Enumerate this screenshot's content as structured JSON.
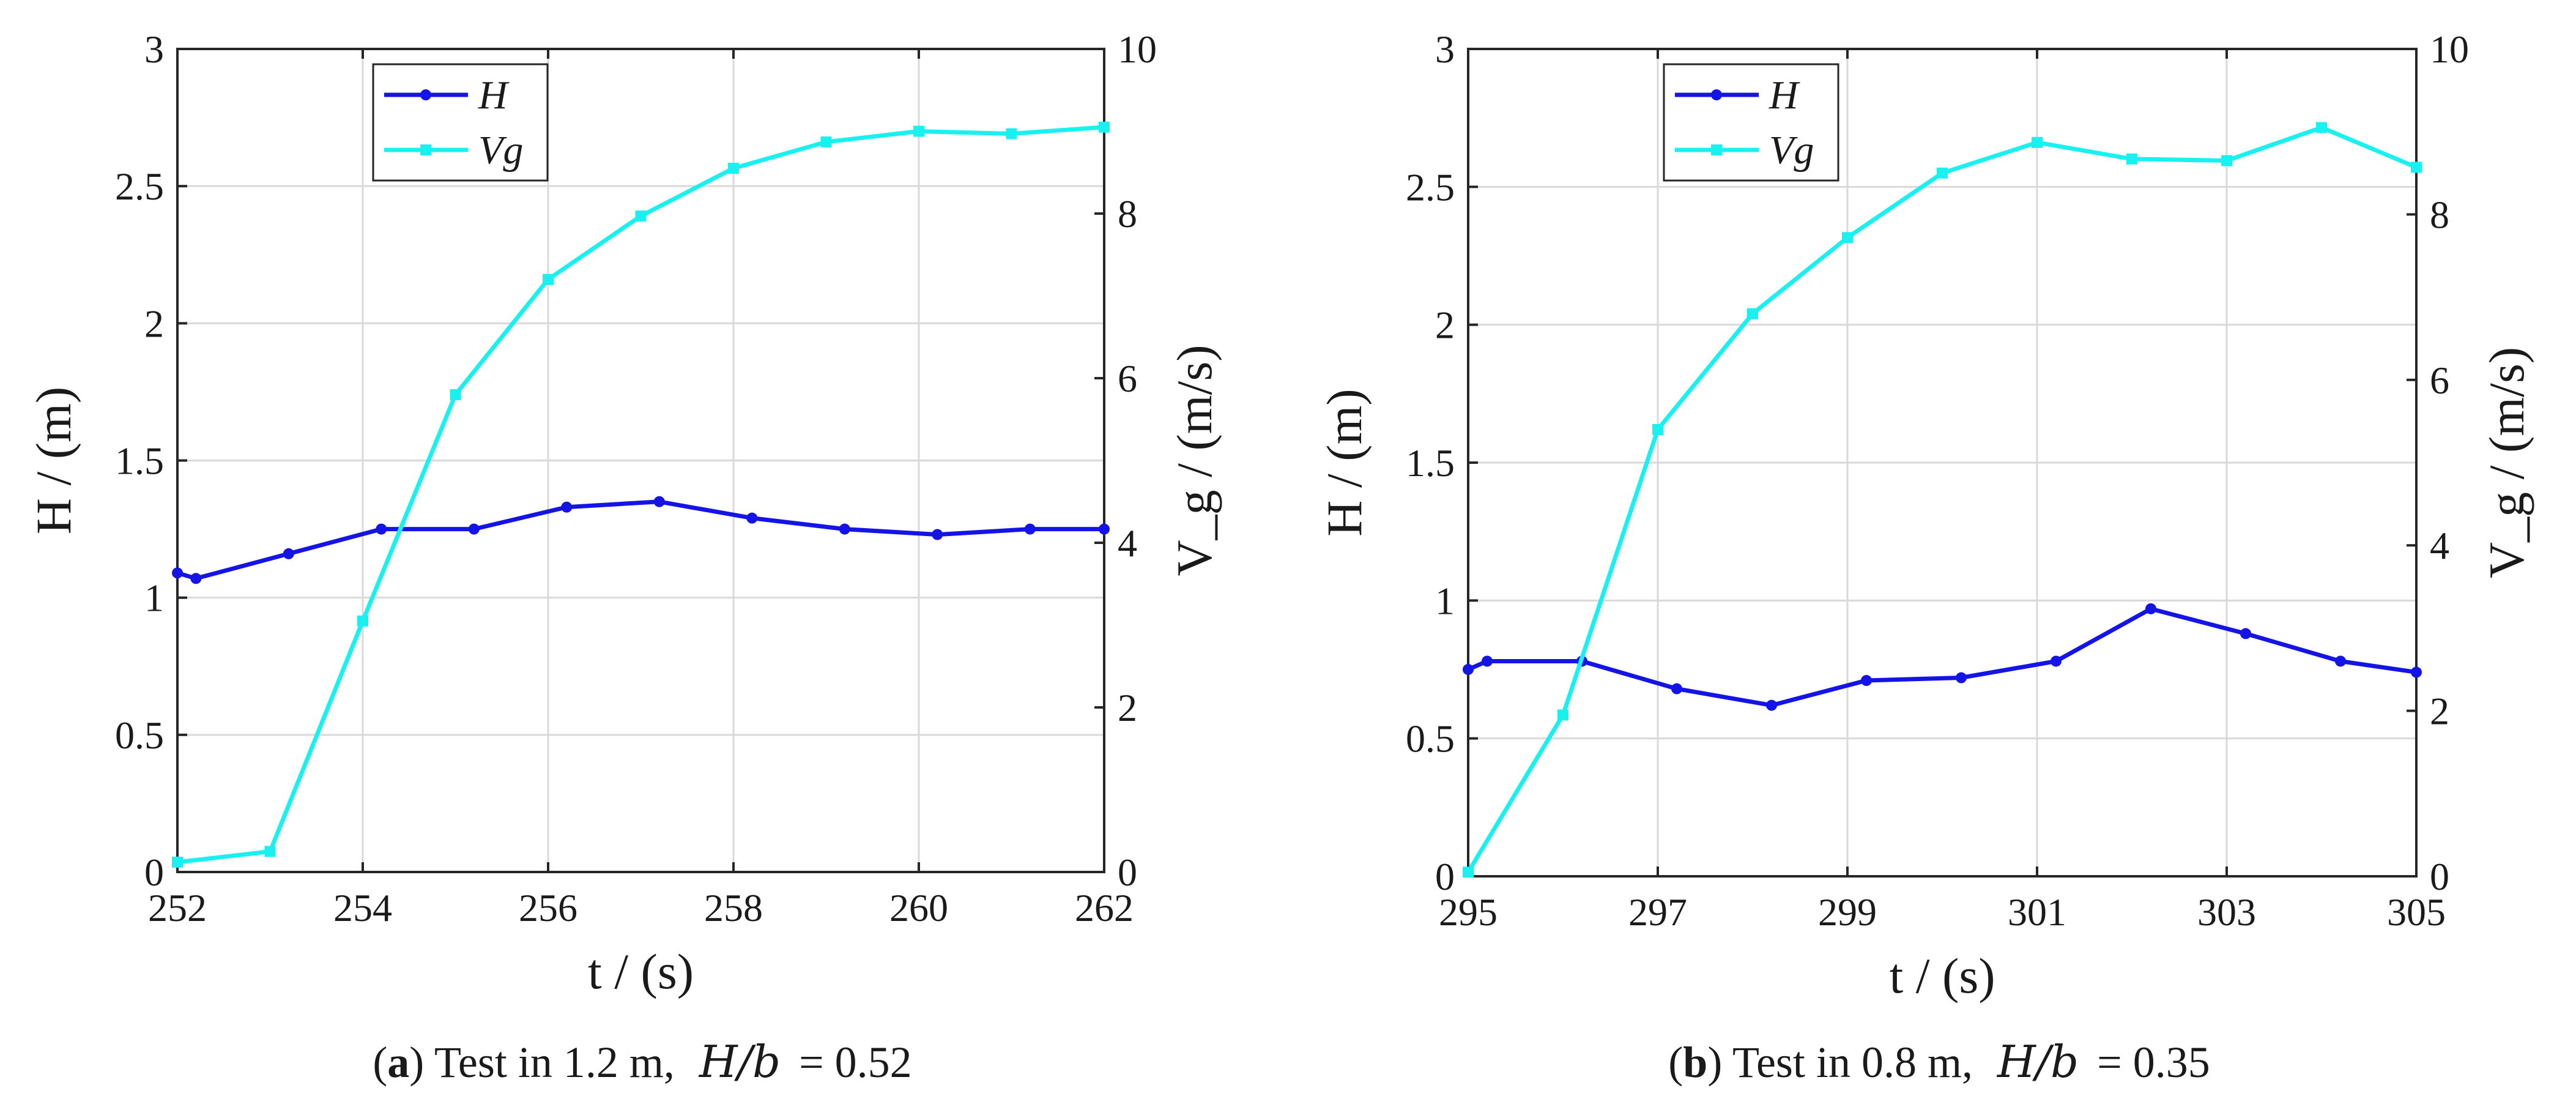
{
  "colors": {
    "H": "#1414e6",
    "Vg": "#19f0f0"
  },
  "chart_data": [
    {
      "id": "a",
      "type": "line",
      "xlabel": "t / (s)",
      "ylabel_left": "H / (m)",
      "ylabel_right": "V_g / (m/s)",
      "xlim": [
        252,
        262
      ],
      "ylim_left": [
        0,
        3
      ],
      "ylim_right": [
        0,
        10
      ],
      "xticks": [
        252,
        254,
        256,
        258,
        260,
        262
      ],
      "yticks_left": [
        "0",
        "0.5",
        "1",
        "1.5",
        "2",
        "2.5",
        "3"
      ],
      "yticks_right": [
        "0",
        "2",
        "4",
        "6",
        "8",
        "10"
      ],
      "grid": true,
      "legend": [
        "H",
        "Vg"
      ],
      "legend_position": "top-left",
      "caption": {
        "letter": "a",
        "text": ") Test in 1.2 m,",
        "ratio_label": "H/b",
        "ratio_value": "= 0.52"
      },
      "series": [
        {
          "name": "H",
          "axis": "left",
          "x": [
            252,
            252.2,
            253.2,
            254.2,
            255.2,
            256.2,
            257.2,
            258.2,
            259.2,
            260.2,
            261.2,
            262
          ],
          "y": [
            1.09,
            1.07,
            1.16,
            1.25,
            1.25,
            1.33,
            1.35,
            1.29,
            1.25,
            1.23,
            1.25,
            1.25
          ]
        },
        {
          "name": "Vg",
          "axis": "right",
          "x": [
            252,
            253,
            254,
            255,
            256,
            257,
            258,
            259,
            260,
            261,
            262
          ],
          "y": [
            0.12,
            0.25,
            3.05,
            5.8,
            7.2,
            7.97,
            8.55,
            8.87,
            9.0,
            8.97,
            9.05
          ]
        }
      ]
    },
    {
      "id": "b",
      "type": "line",
      "xlabel": "t / (s)",
      "ylabel_left": "H / (m)",
      "ylabel_right": "V_g / (m/s)",
      "xlim": [
        295,
        305
      ],
      "ylim_left": [
        0,
        3
      ],
      "ylim_right": [
        0,
        10
      ],
      "xticks": [
        295,
        297,
        299,
        301,
        303,
        305
      ],
      "yticks_left": [
        "0",
        "0.5",
        "1",
        "1.5",
        "2",
        "2.5",
        "3"
      ],
      "yticks_right": [
        "0",
        "2",
        "4",
        "6",
        "8",
        "10"
      ],
      "grid": true,
      "legend": [
        "H",
        "Vg"
      ],
      "legend_position": "top-left",
      "caption": {
        "letter": "b",
        "text": ") Test in 0.8 m,",
        "ratio_label": "H/b",
        "ratio_value": "= 0.35"
      },
      "series": [
        {
          "name": "H",
          "axis": "left",
          "x": [
            295,
            295.2,
            296.2,
            297.2,
            298.2,
            299.2,
            300.2,
            301.2,
            302.2,
            303.2,
            304.2,
            305
          ],
          "y": [
            0.75,
            0.78,
            0.78,
            0.68,
            0.62,
            0.71,
            0.72,
            0.78,
            0.97,
            0.88,
            0.78,
            0.74
          ]
        },
        {
          "name": "Vg",
          "axis": "right",
          "x": [
            295,
            296,
            297,
            298,
            299,
            300,
            301,
            302,
            303,
            304,
            305
          ],
          "y": [
            0.05,
            1.95,
            5.4,
            6.8,
            7.72,
            8.5,
            8.87,
            8.67,
            8.65,
            9.05,
            8.57
          ]
        }
      ]
    }
  ]
}
